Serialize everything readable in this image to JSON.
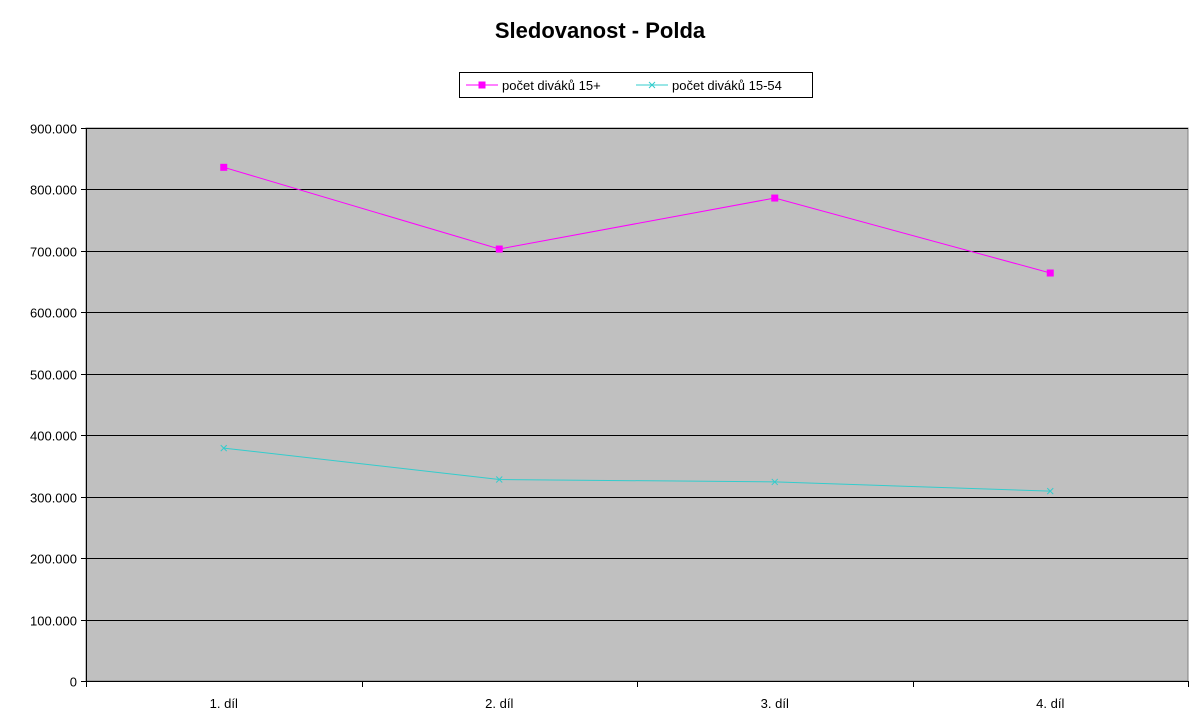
{
  "chart_data": {
    "type": "line",
    "title": "Sledovanost - Polda",
    "xlabel": "",
    "ylabel": "",
    "categories": [
      "1. díl",
      "2. díl",
      "3. díl",
      "4. díl"
    ],
    "ylim": [
      0,
      900000
    ],
    "y_ticks": [
      0,
      100000,
      200000,
      300000,
      400000,
      500000,
      600000,
      700000,
      800000,
      900000
    ],
    "y_tick_labels": [
      "0",
      "100.000",
      "200.000",
      "300.000",
      "400.000",
      "500.000",
      "600.000",
      "700.000",
      "800.000",
      "900.000"
    ],
    "grid": true,
    "legend_position": "top",
    "series": [
      {
        "name": "počet diváků 15+",
        "values": [
          836000,
          703000,
          786000,
          664000
        ],
        "color": "#ff00ff",
        "marker": "square"
      },
      {
        "name": "počet diváků 15-54",
        "values": [
          379000,
          328000,
          324000,
          309000
        ],
        "color": "#33cccc",
        "marker": "x"
      }
    ],
    "plot_background": "#c0c0c0"
  }
}
